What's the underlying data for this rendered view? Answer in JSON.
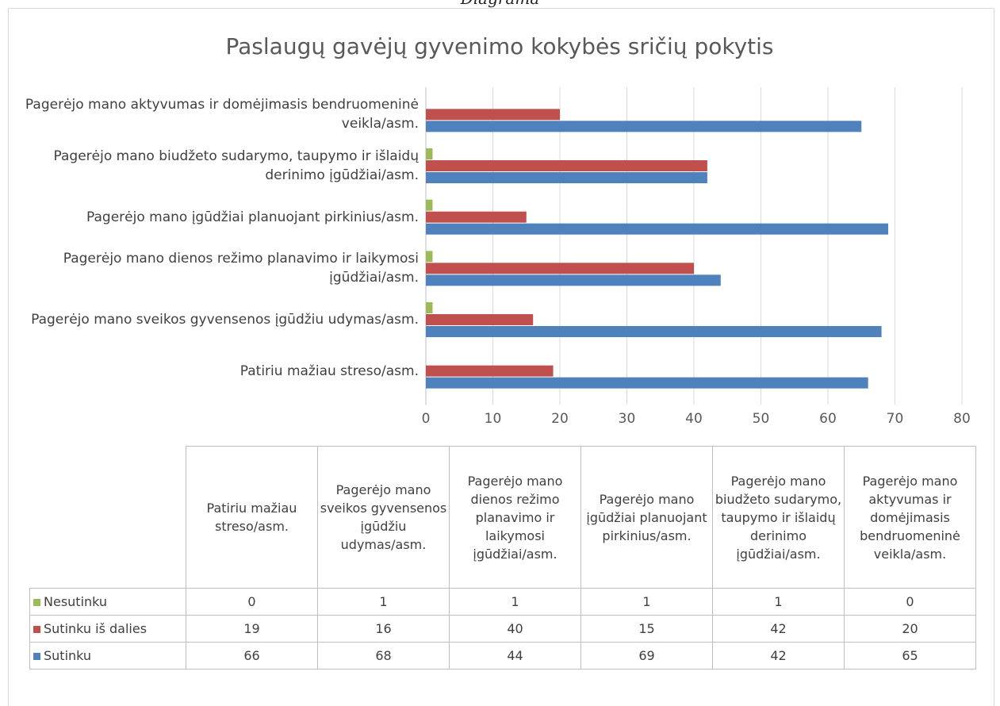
{
  "caption": "Diagrama",
  "chart_data": {
    "type": "hbar",
    "title": "Paslaugų gavėjų gyvenimo kokybės sričių pokytis",
    "categories": [
      "Patiriu mažiau streso/asm.",
      "Pagerėjo mano sveikos gyvensenos įgūdžiu udymas/asm.",
      "Pagerėjo mano dienos režimo planavimo ir laikymosi įgūdžiai/asm.",
      "Pagerėjo mano įgūdžiai planuojant pirkinius/asm.",
      "Pagerėjo mano biudžeto sudarymo, taupymo ir išlaidų derinimo įgūdžiai/asm.",
      "Pagerėjo mano aktyvumas ir domėjimasis bendruomeninė veikla/asm."
    ],
    "series": [
      {
        "name": "Nesutinku",
        "color": "#9bbb59",
        "values": [
          0,
          1,
          1,
          1,
          1,
          0
        ]
      },
      {
        "name": "Sutinku iš dalies",
        "color": "#c0504d",
        "values": [
          19,
          16,
          40,
          15,
          42,
          20
        ]
      },
      {
        "name": "Sutinku",
        "color": "#4f81bd",
        "values": [
          66,
          68,
          44,
          69,
          42,
          65
        ]
      }
    ],
    "xlim": [
      0,
      80
    ],
    "xticks": [
      0,
      10,
      20,
      30,
      40,
      50,
      60,
      70,
      80
    ],
    "grid": true,
    "data_table": true
  }
}
